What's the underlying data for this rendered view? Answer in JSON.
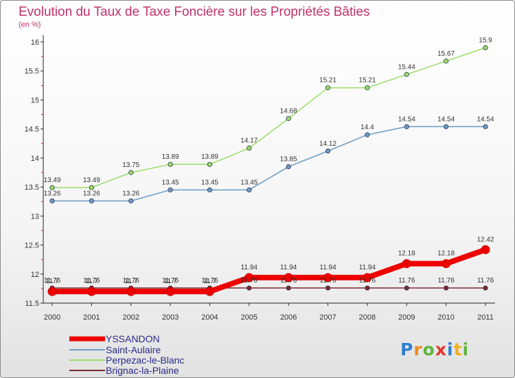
{
  "chart_data": {
    "type": "line",
    "title": "Evolution du Taux de Taxe Foncière sur les Propriétés Bâties",
    "subtitle": "(en %)",
    "categories": [
      "2000",
      "2001",
      "2002",
      "2003",
      "2004",
      "2005",
      "2006",
      "2007",
      "2008",
      "2009",
      "2010",
      "2011"
    ],
    "ylim": [
      11.5,
      16
    ],
    "y_ticks": [
      "11.5",
      "12",
      "12.5",
      "13",
      "13.5",
      "14",
      "14.5",
      "15",
      "15.5",
      "16"
    ],
    "grid": false,
    "legend_position": "bottom-left",
    "series": [
      {
        "name": "YSSANDON",
        "color": "#ee0000",
        "values": [
          11.7,
          11.7,
          11.7,
          11.7,
          11.7,
          11.94,
          11.94,
          11.94,
          11.94,
          12.18,
          12.18,
          12.42
        ],
        "labels": [
          "11.7",
          "11.7",
          "11.7",
          "11.7",
          "11.7",
          "11.94",
          "11.94",
          "11.94",
          "11.94",
          "12.18",
          "12.18",
          "12.42"
        ]
      },
      {
        "name": "Saint-Aulaire",
        "color": "#6b9bc3",
        "values": [
          13.26,
          13.26,
          13.26,
          13.45,
          13.45,
          13.45,
          13.85,
          14.12,
          14.4,
          14.54,
          14.54,
          14.54
        ],
        "labels": [
          "13.26",
          "13.26",
          "13.26",
          "13.45",
          "13.45",
          "13.45",
          "13.85",
          "14.12",
          "14.4",
          "14.54",
          "14.54",
          "14.54"
        ]
      },
      {
        "name": "Perpezac-le-Blanc",
        "color": "#99dd66",
        "values": [
          13.49,
          13.49,
          13.75,
          13.89,
          13.89,
          14.17,
          14.68,
          15.21,
          15.21,
          15.44,
          15.67,
          15.9
        ],
        "labels": [
          "13.49",
          "13.49",
          "13.75",
          "13.89",
          "13.89",
          "14.17",
          "14.68",
          "15.21",
          "15.21",
          "15.44",
          "15.67",
          "15.9"
        ]
      },
      {
        "name": "Brignac-la-Plaine",
        "color": "#7a2a2a",
        "values": [
          11.76,
          11.76,
          11.76,
          11.76,
          11.76,
          11.76,
          11.76,
          11.76,
          11.76,
          11.76,
          11.76,
          11.76
        ],
        "labels": [
          "11.76",
          "11.76",
          "11.76",
          "11.76",
          "11.76",
          "11.76",
          "11.76",
          "11.76",
          "11.76",
          "11.76",
          "11.76",
          "11.76"
        ]
      }
    ]
  },
  "logo": {
    "text": "Proxiti"
  }
}
